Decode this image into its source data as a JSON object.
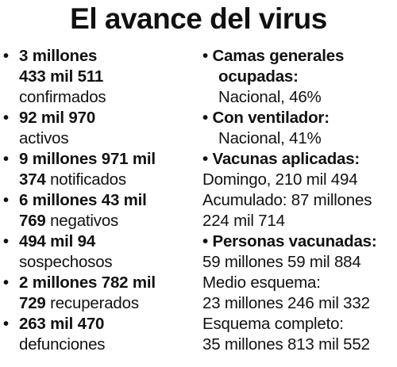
{
  "title": "El avance del virus",
  "left": [
    {
      "l1b": "3 millones",
      "l2b": "433 mil 511",
      "l2r": "",
      "l3r": "confirmados"
    },
    {
      "l1b": "92 mil 970",
      "l2b": "",
      "l2r": "",
      "l3r": "activos"
    },
    {
      "l1b": "9 millones 971 mil",
      "l2b": "374",
      "l2r": "notificados",
      "l3r": ""
    },
    {
      "l1b": "6 millones 43 mil",
      "l2b": "769",
      "l2r": "negativos",
      "l3r": ""
    },
    {
      "l1b": "494 mil 94",
      "l2b": "",
      "l2r": "",
      "l3r": "sospechosos"
    },
    {
      "l1b": "2 millones 782 mil",
      "l2b": "729",
      "l2r": "recuperados",
      "l3r": ""
    },
    {
      "l1b": "263 mil 470",
      "l2b": "",
      "l2r": "",
      "l3r": "defunciones"
    }
  ],
  "right": {
    "camas_h1": "Camas generales",
    "camas_h2": "ocupadas:",
    "camas_v": "Nacional, 46%",
    "vent_h": "Con ventilador:",
    "vent_v": "Nacional, 41%",
    "vac_h": "Vacunas aplicadas:",
    "vac_l1": "Domingo, 210 mil 494",
    "vac_l2": "Acumulado: 87 millones",
    "vac_l3": "224 mil 714",
    "per_h": "Personas vacunadas:",
    "per_l1": "59 millones 59 mil 884",
    "per_l2": "Medio esquema:",
    "per_l3": "23 millones 246 mil 332",
    "per_l4": "Esquema completo:",
    "per_l5": "35 millones 813 mil 552"
  },
  "bullet": "•"
}
